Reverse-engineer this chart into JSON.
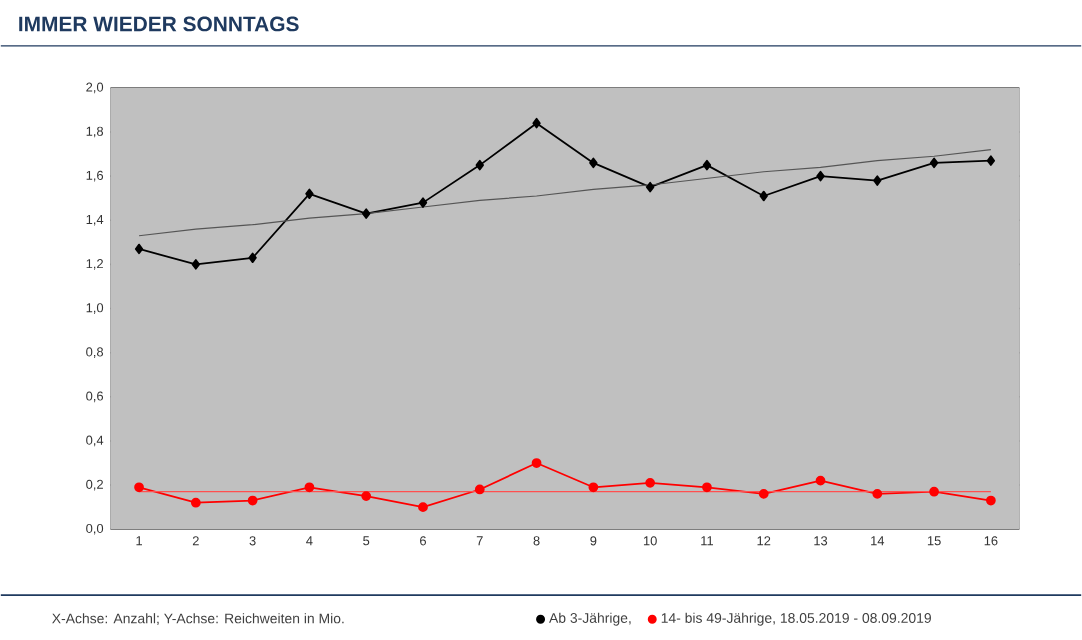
{
  "chart_data": {
    "type": "line",
    "title": "IMMER WIEDER SONNTAGS",
    "categories": [
      "1",
      "2",
      "3",
      "4",
      "5",
      "6",
      "7",
      "8",
      "9",
      "10",
      "11",
      "12",
      "13",
      "14",
      "15",
      "16"
    ],
    "series": [
      {
        "name": "Ab 3-Jährige,",
        "color": "#000000",
        "marker": "diamond",
        "values": [
          1.27,
          1.2,
          1.23,
          1.52,
          1.43,
          1.48,
          1.65,
          1.84,
          1.66,
          1.55,
          1.65,
          1.51,
          1.6,
          1.58,
          1.66,
          1.67
        ]
      },
      {
        "name": "14- bis 49-Jährige, 18.05.2019 - 08.09.2019",
        "color": "#ff0000",
        "marker": "circle",
        "values": [
          0.19,
          0.12,
          0.13,
          0.19,
          0.15,
          0.1,
          0.18,
          0.3,
          0.19,
          0.21,
          0.19,
          0.16,
          0.22,
          0.16,
          0.17,
          0.13
        ]
      },
      {
        "type": "line",
        "color": "#555555",
        "marker": "none",
        "values": [
          1.33,
          1.36,
          1.38,
          1.41,
          1.43,
          1.46,
          1.49,
          1.51,
          1.54,
          1.56,
          1.59,
          1.62,
          1.64,
          1.67,
          1.69,
          1.72
        ]
      },
      {
        "type": "line",
        "color": "#ff5050",
        "marker": "none",
        "values": [
          0.17,
          0.17,
          0.17,
          0.17,
          0.17,
          0.17,
          0.17,
          0.17,
          0.17,
          0.17,
          0.17,
          0.17,
          0.17,
          0.17,
          0.17,
          0.17
        ]
      }
    ],
    "ylim": [
      0,
      2
    ],
    "yticks": [
      {
        "value": 0,
        "label": "0,0"
      },
      {
        "value": 0.2,
        "label": "0,2"
      },
      {
        "value": 0.4,
        "label": "0,4"
      },
      {
        "value": 0.6,
        "label": "0,6"
      },
      {
        "value": 0.8,
        "label": "0,8"
      },
      {
        "value": 1.0,
        "label": "1,0"
      },
      {
        "value": 1.2,
        "label": "1,2"
      },
      {
        "value": 1.4,
        "label": "1,4"
      },
      {
        "value": 1.6,
        "label": "1,6"
      },
      {
        "value": 1.8,
        "label": "1,8"
      },
      {
        "value": 2.0,
        "label": "2,0"
      }
    ],
    "grid": "y",
    "legend": "bottom right",
    "annotations": [
      "X-Achse: Anzahl; Y-Achse: Reichweiten in Mio."
    ]
  }
}
